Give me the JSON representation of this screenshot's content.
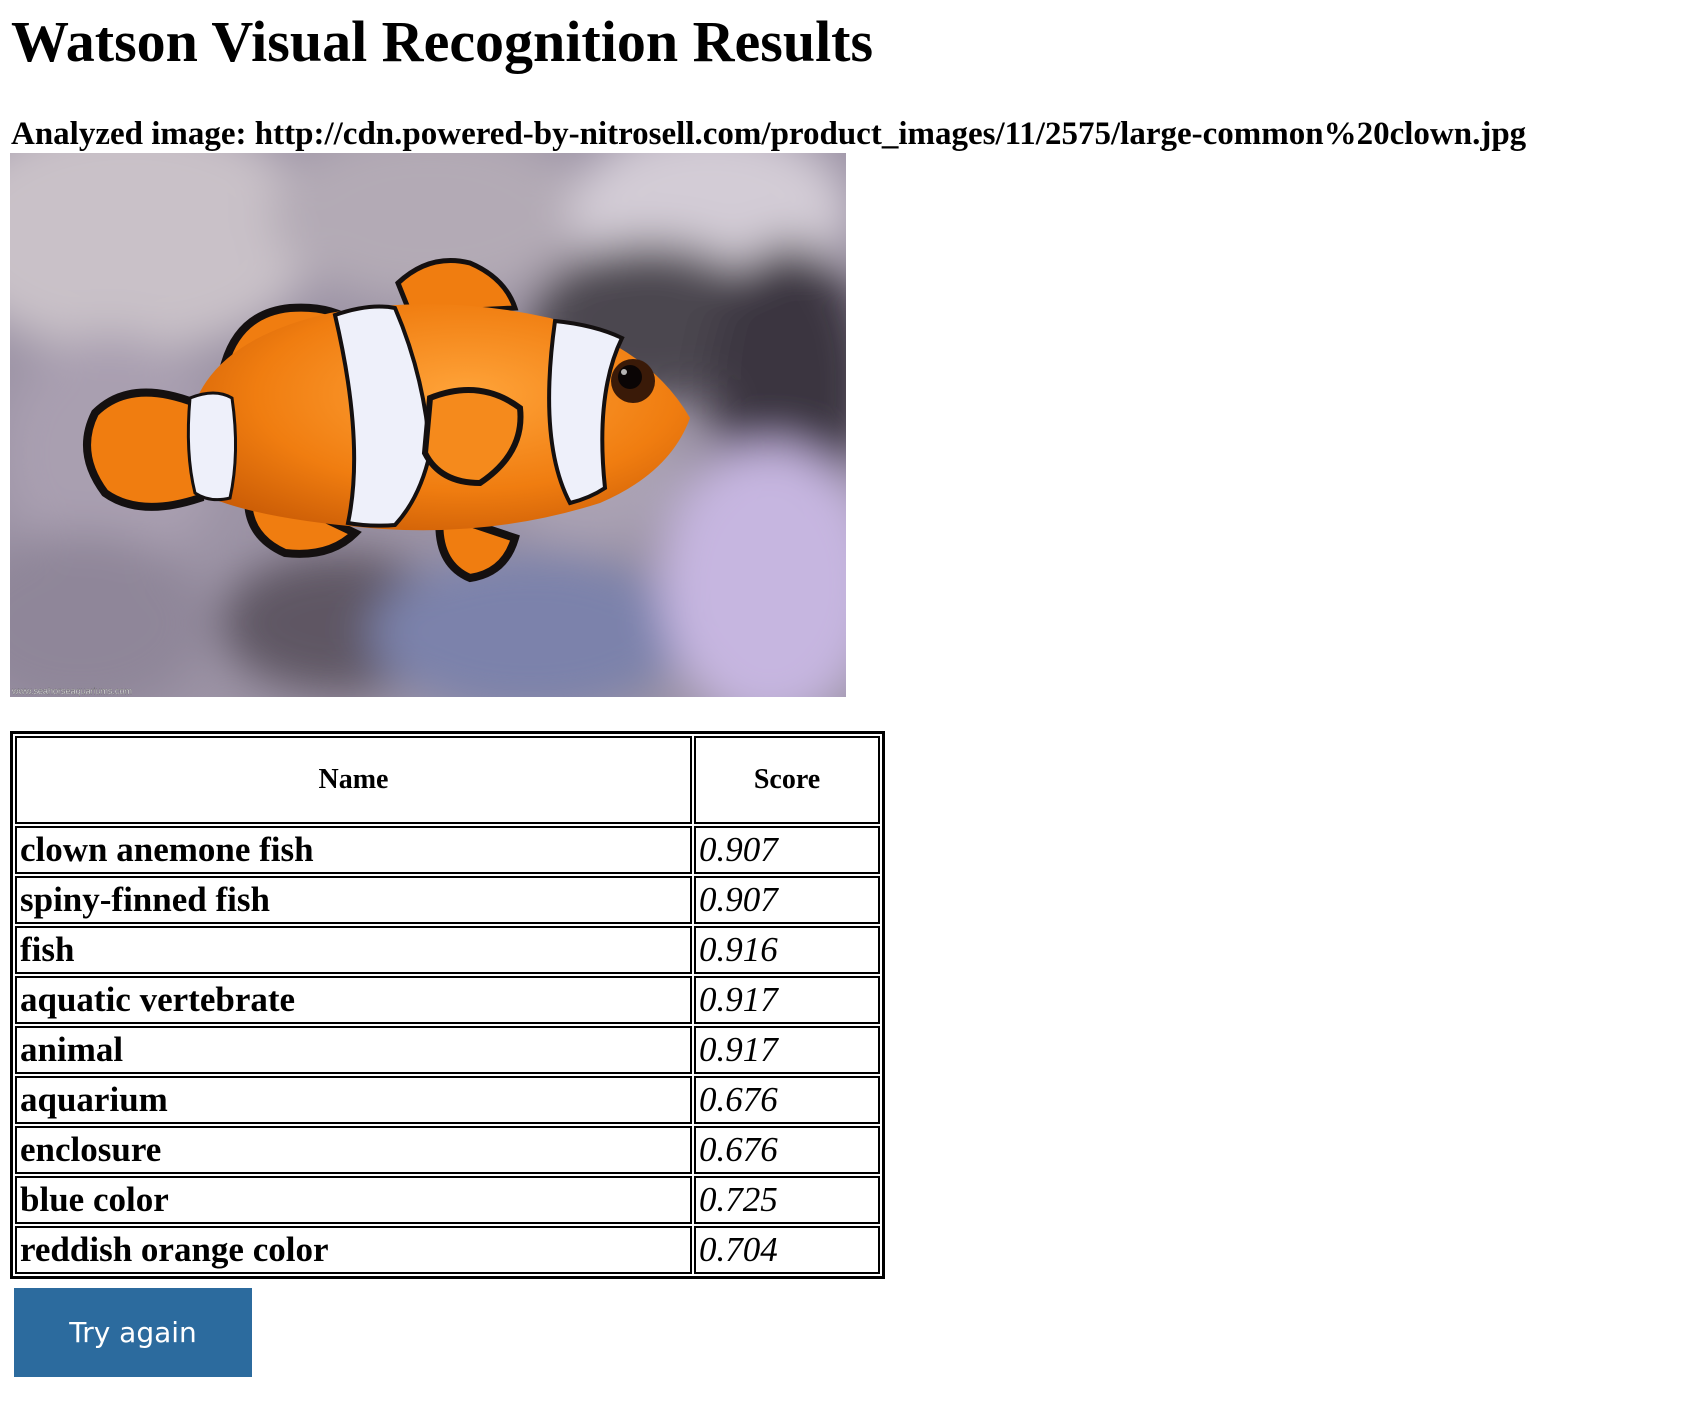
{
  "page": {
    "title": "Watson Visual Recognition Results",
    "analyzed_label": "Analyzed image: ",
    "analyzed_url": "http://cdn.powered-by-nitrosell.com/product_images/11/2575/large-common%20clown.jpg"
  },
  "image": {
    "subject": "clownfish",
    "watermark": "www.seahorseaquariums.com",
    "colors": {
      "fish_orange": "#f07d10",
      "fish_white": "#eef0fa",
      "fish_black": "#141010",
      "background": "#9c93a5"
    }
  },
  "table": {
    "headers": [
      "Name",
      "Score"
    ],
    "rows": [
      {
        "name": "clown anemone fish",
        "score": "0.907"
      },
      {
        "name": "spiny-finned fish",
        "score": "0.907"
      },
      {
        "name": "fish",
        "score": "0.916"
      },
      {
        "name": "aquatic vertebrate",
        "score": "0.917"
      },
      {
        "name": "animal",
        "score": "0.917"
      },
      {
        "name": "aquarium",
        "score": "0.676"
      },
      {
        "name": "enclosure",
        "score": "0.676"
      },
      {
        "name": "blue color",
        "score": "0.725"
      },
      {
        "name": "reddish orange color",
        "score": "0.704"
      }
    ]
  },
  "actions": {
    "try_again_label": "Try again",
    "button_color": "#2c6b9e"
  }
}
